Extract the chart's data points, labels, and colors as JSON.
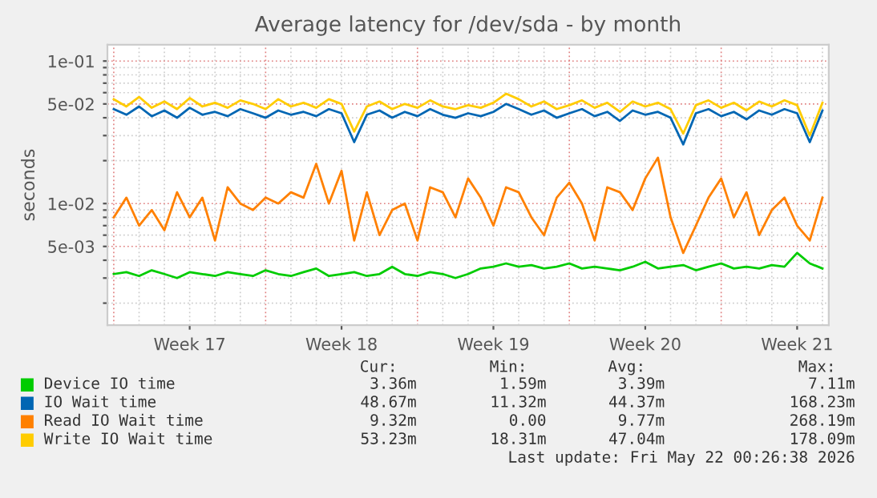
{
  "chart_data": {
    "type": "line",
    "title": "Average latency for /dev/sda - by month",
    "ylabel": "seconds",
    "log": "y",
    "grid": true,
    "legend": "bottom",
    "line_style": "solid",
    "marker": "none",
    "categories": [
      null,
      null,
      null,
      null,
      null,
      null,
      "Week 17",
      null,
      null,
      null,
      null,
      null,
      null,
      null,
      null,
      null,
      null,
      null,
      "Week 18",
      null,
      null,
      null,
      null,
      null,
      null,
      null,
      null,
      null,
      null,
      null,
      "Week 19",
      null,
      null,
      null,
      null,
      null,
      null,
      null,
      null,
      null,
      null,
      null,
      "Week 20",
      null,
      null,
      null,
      null,
      null,
      null,
      null,
      null,
      null,
      null,
      null,
      "Week 21",
      null,
      null
    ],
    "ylim": [
      0.0014,
      0.13
    ],
    "yticks": [
      {
        "value": 0.002,
        "label": null
      },
      {
        "value": 0.003,
        "label": null
      },
      {
        "value": 0.004,
        "label": null
      },
      {
        "value": 0.005,
        "label": "5e-03"
      },
      {
        "value": 0.006,
        "label": null
      },
      {
        "value": 0.007,
        "label": null
      },
      {
        "value": 0.008,
        "label": null
      },
      {
        "value": 0.009,
        "label": null
      },
      {
        "value": 0.01,
        "label": "1e-02"
      },
      {
        "value": 0.02,
        "label": null
      },
      {
        "value": 0.03,
        "label": null
      },
      {
        "value": 0.04,
        "label": null
      },
      {
        "value": 0.05,
        "label": "5e-02"
      },
      {
        "value": 0.06,
        "label": null
      },
      {
        "value": 0.07,
        "label": null
      },
      {
        "value": 0.08,
        "label": null
      },
      {
        "value": 0.09,
        "label": null
      },
      {
        "value": 0.1,
        "label": "1e-01"
      }
    ],
    "series": [
      {
        "name": "Device IO time",
        "color": "#00cc00",
        "values": [
          0.0032,
          0.0033,
          0.0031,
          0.0034,
          0.0032,
          0.003,
          0.0033,
          0.0032,
          0.0031,
          0.0033,
          0.0032,
          0.0031,
          0.0034,
          0.0032,
          0.0031,
          0.0033,
          0.0035,
          0.0031,
          0.0032,
          0.0033,
          0.0031,
          0.0032,
          0.0036,
          0.0032,
          0.0031,
          0.0033,
          0.0032,
          0.003,
          0.0032,
          0.0035,
          0.0036,
          0.0038,
          0.0036,
          0.0037,
          0.0035,
          0.0036,
          0.0038,
          0.0035,
          0.0036,
          0.0035,
          0.0034,
          0.0036,
          0.0039,
          0.0035,
          0.0036,
          0.0037,
          0.0034,
          0.0036,
          0.0038,
          0.0035,
          0.0036,
          0.0035,
          0.0037,
          0.0036,
          0.0045,
          0.0038,
          0.0035
        ]
      },
      {
        "name": "IO Wait time",
        "color": "#0066b3",
        "values": [
          0.046,
          0.042,
          0.048,
          0.041,
          0.045,
          0.04,
          0.047,
          0.042,
          0.044,
          0.041,
          0.046,
          0.043,
          0.04,
          0.045,
          0.042,
          0.044,
          0.041,
          0.046,
          0.043,
          0.027,
          0.042,
          0.045,
          0.04,
          0.044,
          0.041,
          0.046,
          0.042,
          0.04,
          0.043,
          0.041,
          0.044,
          0.05,
          0.046,
          0.042,
          0.045,
          0.04,
          0.043,
          0.046,
          0.041,
          0.044,
          0.038,
          0.045,
          0.042,
          0.044,
          0.04,
          0.026,
          0.043,
          0.046,
          0.041,
          0.044,
          0.039,
          0.045,
          0.042,
          0.046,
          0.043,
          0.027,
          0.045
        ]
      },
      {
        "name": "Read IO Wait time",
        "color": "#ff8000",
        "values": [
          0.008,
          0.011,
          0.007,
          0.009,
          0.0065,
          0.012,
          0.008,
          0.011,
          0.0055,
          0.013,
          0.01,
          0.009,
          0.011,
          0.01,
          0.012,
          0.011,
          0.019,
          0.01,
          0.017,
          0.0055,
          0.012,
          0.006,
          0.009,
          0.01,
          0.0055,
          0.013,
          0.012,
          0.008,
          0.015,
          0.011,
          0.007,
          0.013,
          0.012,
          0.008,
          0.006,
          0.011,
          0.014,
          0.01,
          0.0055,
          0.013,
          0.012,
          0.009,
          0.015,
          0.021,
          0.008,
          0.0045,
          0.007,
          0.011,
          0.015,
          0.008,
          0.012,
          0.006,
          0.009,
          0.011,
          0.007,
          0.0055,
          0.011
        ]
      },
      {
        "name": "Write IO Wait time",
        "color": "#ffcc00",
        "values": [
          0.054,
          0.048,
          0.056,
          0.047,
          0.052,
          0.046,
          0.055,
          0.048,
          0.051,
          0.047,
          0.053,
          0.05,
          0.046,
          0.054,
          0.048,
          0.051,
          0.047,
          0.054,
          0.05,
          0.032,
          0.048,
          0.052,
          0.046,
          0.05,
          0.047,
          0.053,
          0.048,
          0.046,
          0.049,
          0.047,
          0.051,
          0.059,
          0.054,
          0.048,
          0.052,
          0.046,
          0.049,
          0.053,
          0.047,
          0.051,
          0.044,
          0.052,
          0.048,
          0.051,
          0.046,
          0.031,
          0.049,
          0.053,
          0.047,
          0.051,
          0.045,
          0.052,
          0.048,
          0.053,
          0.049,
          0.03,
          0.051
        ]
      }
    ],
    "annotations": [
      "Cur:",
      "Min:",
      "Avg:",
      "Max:",
      "3.36m",
      "1.59m",
      "3.39m",
      "7.11m",
      "48.67m",
      "11.32m",
      "44.37m",
      "168.23m",
      "9.32m",
      "0.00",
      "9.77m",
      "268.19m",
      "53.23m",
      "18.31m",
      "47.04m",
      "178.09m",
      "Last update: Fri May 22 00:26:38 2026"
    ]
  }
}
